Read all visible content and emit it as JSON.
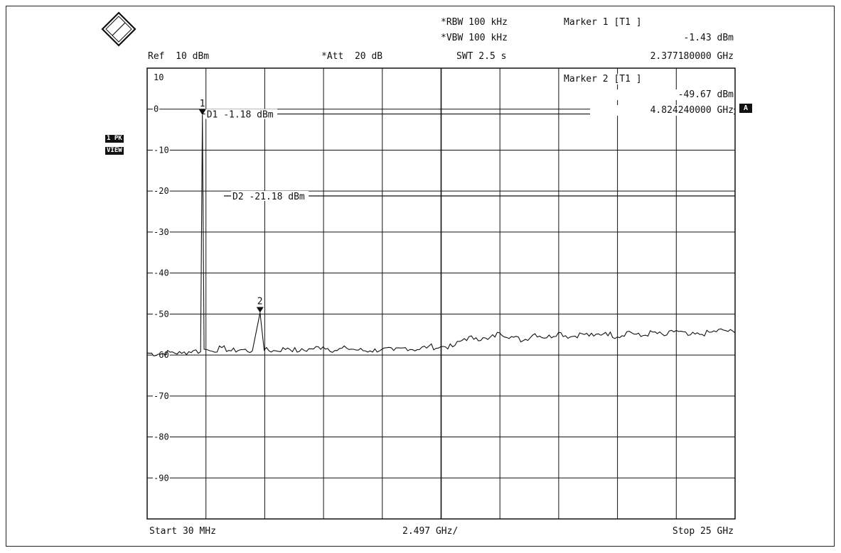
{
  "header": {
    "ref": "Ref  10 dBm",
    "att": "*Att  20 dB",
    "rbw": "*RBW 100 kHz",
    "vbw": "*VBW 100 kHz",
    "swt": "SWT 2.5 s",
    "marker1_title": "Marker 1 [T1 ]",
    "marker1_level": "-1.43 dBm",
    "marker1_freq": "2.377180000 GHz"
  },
  "marker2": {
    "title": "Marker 2 [T1 ]",
    "level": "-49.67 dBm",
    "freq": "4.824240000 GHz"
  },
  "side_tags": {
    "trace_mode": "1 PK",
    "view": "VIEW",
    "trace_id": "A"
  },
  "footer": {
    "start": "Start 30 MHz",
    "span_per_div": "2.497 GHz/",
    "stop": "Stop 25 GHz"
  },
  "logo_text": "R&S",
  "chart_data": {
    "type": "line",
    "x_unit": "GHz",
    "y_unit": "dBm",
    "xlim": [
      0.03,
      25
    ],
    "ylim": [
      -100,
      10
    ],
    "grid": true,
    "ytick_labels": [
      "10",
      "0",
      "-10",
      "-20",
      "-30",
      "-40",
      "-50",
      "-60",
      "-70",
      "-80",
      "-90"
    ],
    "ytick_values": [
      10,
      0,
      -10,
      -20,
      -30,
      -40,
      -50,
      -60,
      -70,
      -80,
      -90
    ],
    "display_lines": [
      {
        "name": "D1",
        "label": "D1  -1.18 dBm",
        "y": -1.18
      },
      {
        "name": "D2",
        "label": "D2  -21.18 dBm",
        "y": -21.18
      }
    ],
    "markers": [
      {
        "label": "1",
        "x": 2.377,
        "y": -1.43
      },
      {
        "label": "2",
        "x": 4.824,
        "y": -49.67
      }
    ],
    "series": [
      {
        "x": [
          0.03,
          0.5,
          1.0,
          1.5,
          2.0,
          2.3,
          2.377,
          2.45,
          2.8,
          3.2,
          3.6,
          4.0,
          4.5,
          4.824,
          5.0,
          5.5,
          6.0,
          6.5,
          7.0,
          7.5,
          8.0,
          8.5,
          9.0,
          9.5,
          10.0,
          10.5,
          11.0,
          11.5,
          12.0,
          12.4,
          12.6,
          13.0,
          13.5,
          14.0,
          14.5,
          15.0,
          15.5,
          16.0,
          16.5,
          17.0,
          17.5,
          18.0,
          18.5,
          19.0,
          19.5,
          20.0,
          20.5,
          21.0,
          21.5,
          22.0,
          22.5,
          23.0,
          23.5,
          24.0,
          24.5,
          25.0
        ],
        "y": [
          -59.5,
          -59.8,
          -59.3,
          -59.6,
          -58.9,
          -59.2,
          -1.43,
          -58.6,
          -59.1,
          -58.2,
          -59.0,
          -58.7,
          -59.0,
          -49.67,
          -58.8,
          -59.0,
          -58.3,
          -59.1,
          -58.5,
          -58.0,
          -58.9,
          -58.3,
          -58.8,
          -59.0,
          -58.6,
          -58.9,
          -58.2,
          -58.7,
          -57.8,
          -58.3,
          -57.9,
          -58.0,
          -56.0,
          -55.8,
          -56.2,
          -54.6,
          -55.5,
          -56.5,
          -54.8,
          -55.8,
          -54.5,
          -55.6,
          -54.8,
          -55.4,
          -54.5,
          -55.6,
          -54.2,
          -55.5,
          -54.4,
          -55.3,
          -54.0,
          -55.2,
          -55.0,
          -54.4,
          -53.9,
          -54.6
        ]
      }
    ]
  }
}
